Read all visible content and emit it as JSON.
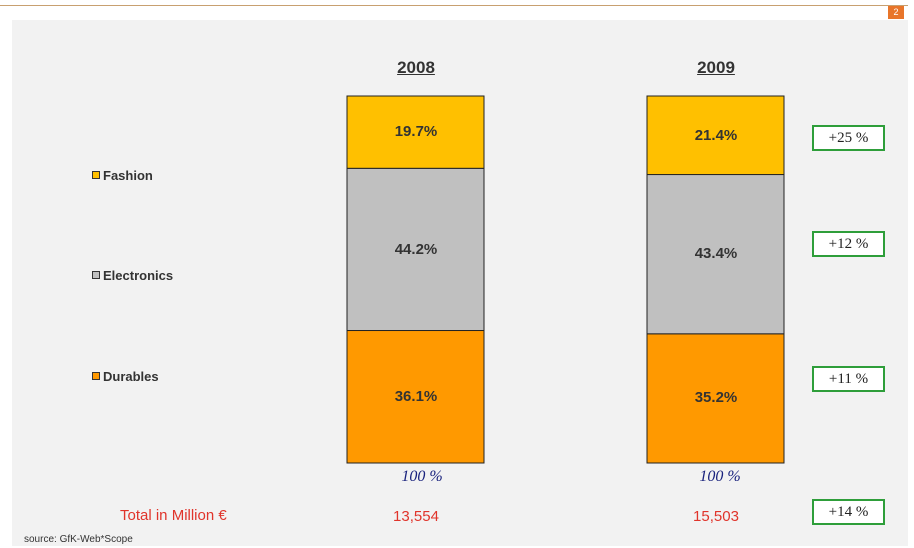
{
  "page_number": "2",
  "legend": [
    {
      "label": "Fashion",
      "color": "#ffc000"
    },
    {
      "label": "Electronics",
      "color": "#c0c0c0"
    },
    {
      "label": "Durables",
      "color": "#ff9900"
    }
  ],
  "chart_data": {
    "type": "bar",
    "stacked": true,
    "categories": [
      "2008",
      "2009"
    ],
    "series": [
      {
        "name": "Durables",
        "color": "#ff9900",
        "values": [
          36.1,
          35.2
        ],
        "labels": [
          "36.1%",
          "35.2%"
        ]
      },
      {
        "name": "Electronics",
        "color": "#c0c0c0",
        "values": [
          44.2,
          43.4
        ],
        "labels": [
          "44.2%",
          "43.4%"
        ]
      },
      {
        "name": "Fashion",
        "color": "#ffc000",
        "values": [
          19.7,
          21.4
        ],
        "labels": [
          "19.7%",
          "21.4%"
        ]
      }
    ],
    "column_totals": [
      "100 %",
      "100 %"
    ],
    "growth": {
      "Fashion": "+25 %",
      "Electronics": "+12 %",
      "Durables": "+11 %",
      "Total": "+14 %"
    },
    "ylim": [
      0,
      100
    ]
  },
  "totals": {
    "label": "Total in Million €",
    "values": [
      "13,554",
      "15,503"
    ]
  },
  "source": "source: GfK-Web*Scope"
}
